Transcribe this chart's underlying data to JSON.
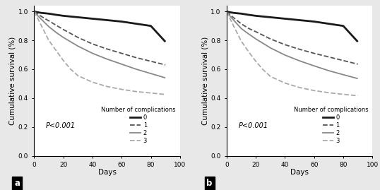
{
  "panel_a": {
    "curves": {
      "0": {
        "x": [
          0,
          2,
          5,
          10,
          15,
          20,
          30,
          40,
          50,
          60,
          70,
          80,
          90
        ],
        "y": [
          1.0,
          0.995,
          0.99,
          0.985,
          0.977,
          0.97,
          0.96,
          0.95,
          0.94,
          0.93,
          0.915,
          0.9,
          0.79
        ],
        "color": "#1a1a1a",
        "linestyle": "-",
        "linewidth": 2.0,
        "label": "0"
      },
      "1": {
        "x": [
          0,
          2,
          5,
          10,
          15,
          20,
          30,
          40,
          50,
          60,
          70,
          80,
          90
        ],
        "y": [
          1.0,
          0.985,
          0.965,
          0.935,
          0.905,
          0.875,
          0.82,
          0.775,
          0.74,
          0.71,
          0.68,
          0.655,
          0.63
        ],
        "color": "#555555",
        "linestyle": "--",
        "linewidth": 1.3,
        "label": "1"
      },
      "2": {
        "x": [
          0,
          2,
          5,
          10,
          15,
          20,
          30,
          40,
          50,
          60,
          70,
          80,
          90
        ],
        "y": [
          1.0,
          0.975,
          0.945,
          0.895,
          0.855,
          0.82,
          0.76,
          0.71,
          0.67,
          0.635,
          0.6,
          0.57,
          0.54
        ],
        "color": "#888888",
        "linestyle": "-",
        "linewidth": 1.3,
        "label": "2"
      },
      "3": {
        "x": [
          0,
          2,
          5,
          8,
          10,
          15,
          20,
          25,
          30,
          40,
          50,
          60,
          70,
          80,
          90
        ],
        "y": [
          1.0,
          0.96,
          0.9,
          0.84,
          0.8,
          0.73,
          0.66,
          0.6,
          0.555,
          0.51,
          0.48,
          0.46,
          0.445,
          0.435,
          0.425
        ],
        "color": "#aaaaaa",
        "linestyle": "--",
        "linewidth": 1.3,
        "label": "3"
      }
    },
    "pvalue": "P<0.001",
    "panel_label": "a"
  },
  "panel_b": {
    "curves": {
      "0": {
        "x": [
          0,
          2,
          5,
          10,
          15,
          20,
          30,
          40,
          50,
          60,
          70,
          80,
          90
        ],
        "y": [
          1.0,
          0.995,
          0.99,
          0.985,
          0.977,
          0.97,
          0.96,
          0.95,
          0.94,
          0.93,
          0.915,
          0.9,
          0.79
        ],
        "color": "#1a1a1a",
        "linestyle": "-",
        "linewidth": 2.0,
        "label": "0"
      },
      "1": {
        "x": [
          0,
          2,
          5,
          10,
          15,
          20,
          30,
          40,
          50,
          60,
          70,
          80,
          90
        ],
        "y": [
          1.0,
          0.98,
          0.955,
          0.915,
          0.883,
          0.86,
          0.81,
          0.77,
          0.738,
          0.71,
          0.685,
          0.66,
          0.635
        ],
        "color": "#555555",
        "linestyle": "--",
        "linewidth": 1.3,
        "label": "1"
      },
      "2": {
        "x": [
          0,
          2,
          5,
          10,
          15,
          20,
          30,
          40,
          50,
          60,
          70,
          80,
          90
        ],
        "y": [
          1.0,
          0.972,
          0.938,
          0.882,
          0.845,
          0.81,
          0.748,
          0.698,
          0.658,
          0.623,
          0.59,
          0.562,
          0.535
        ],
        "color": "#888888",
        "linestyle": "-",
        "linewidth": 1.3,
        "label": "2"
      },
      "3": {
        "x": [
          0,
          2,
          5,
          8,
          10,
          15,
          20,
          25,
          30,
          40,
          50,
          60,
          70,
          80,
          90
        ],
        "y": [
          1.0,
          0.958,
          0.895,
          0.835,
          0.795,
          0.722,
          0.655,
          0.597,
          0.55,
          0.504,
          0.473,
          0.452,
          0.437,
          0.426,
          0.416
        ],
        "color": "#aaaaaa",
        "linestyle": "--",
        "linewidth": 1.3,
        "label": "3"
      }
    },
    "pvalue": "P<0.001",
    "panel_label": "b"
  },
  "ylabel": "Cumulative survival (%)",
  "xlabel": "Days",
  "xlim": [
    0,
    100
  ],
  "ylim": [
    0.0,
    1.04
  ],
  "yticks": [
    0.0,
    0.2,
    0.4,
    0.6,
    0.8,
    1.0
  ],
  "ytick_labels": [
    "0.0",
    "0.2",
    "0.4",
    "0.6",
    "0.8",
    "1.0"
  ],
  "xticks": [
    0,
    20,
    40,
    60,
    80,
    100
  ],
  "xtick_labels": [
    "0",
    "20",
    "40",
    "60",
    "80",
    "100"
  ],
  "legend_title": "Number of complications",
  "bg_color": "#e8e8e8",
  "plot_bg_color": "#ffffff",
  "fontsize_tick": 6.5,
  "fontsize_label": 7.5,
  "fontsize_legend": 6.0,
  "fontsize_pvalue": 7.0,
  "fontsize_panel_label": 8.5
}
